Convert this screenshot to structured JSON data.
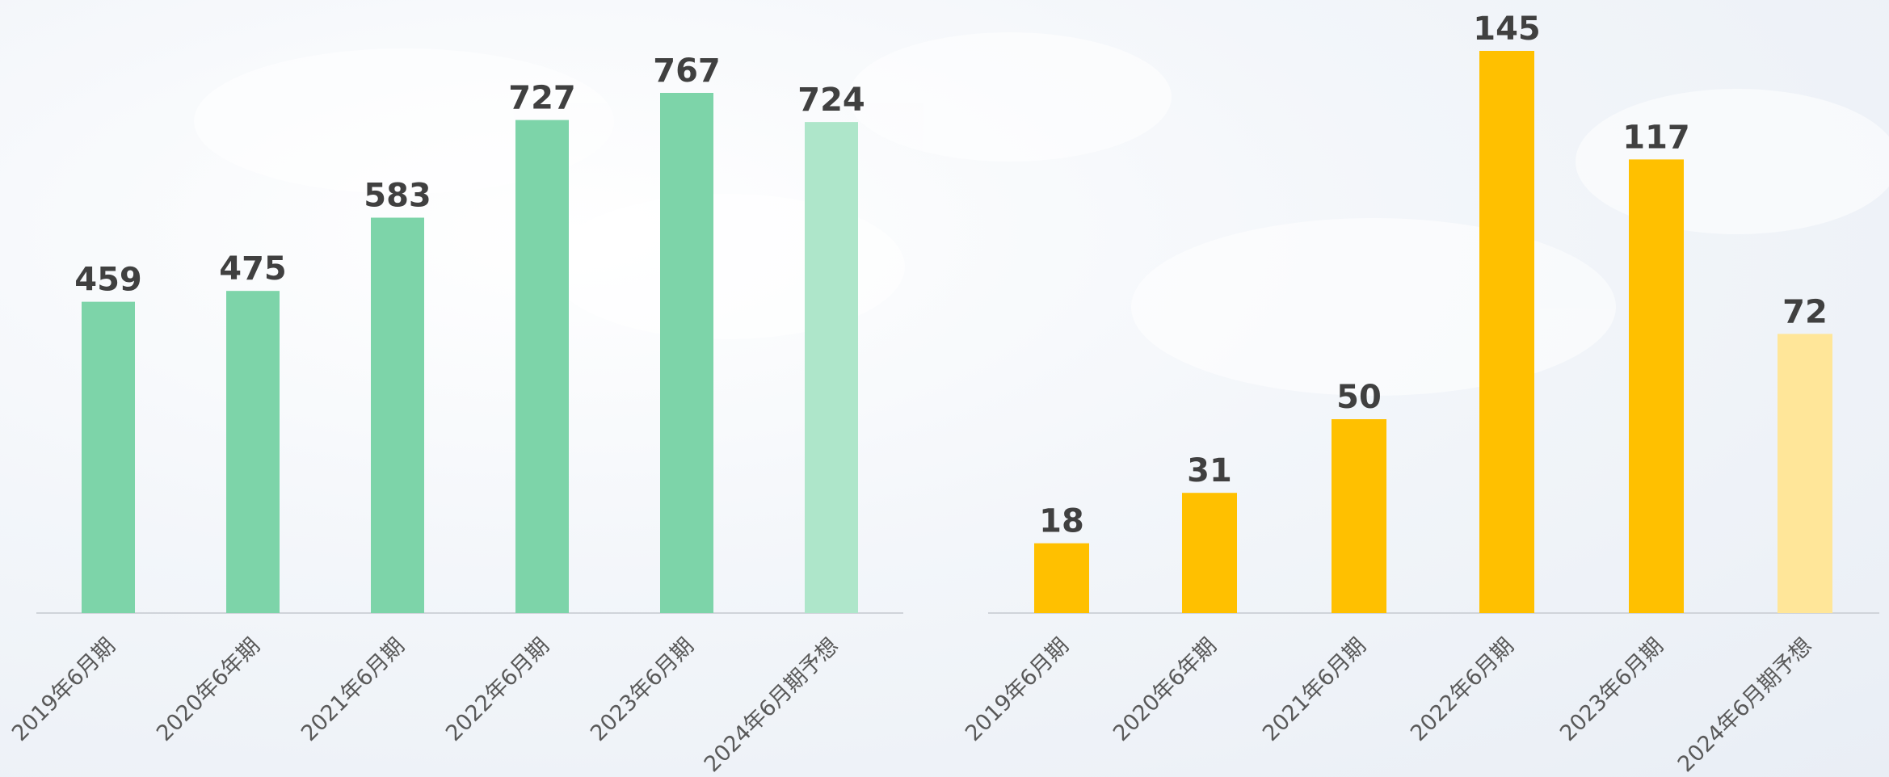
{
  "chart_data": [
    {
      "type": "bar",
      "categories": [
        "2019年6月期",
        "2020年6年期",
        "2021年6月期",
        "2022年6月期",
        "2023年6月期",
        "2024年6月期予想"
      ],
      "values": [
        459,
        475,
        583,
        727,
        767,
        724
      ],
      "colors": [
        "#7dd4a9",
        "#7dd4a9",
        "#7dd4a9",
        "#7dd4a9",
        "#7dd4a9",
        "#aee6ca"
      ]
    },
    {
      "type": "bar",
      "categories": [
        "2019年6月期",
        "2020年6年期",
        "2021年6月期",
        "2022年6月期",
        "2023年6月期",
        "2024年6月期予想"
      ],
      "values": [
        18,
        31,
        50,
        145,
        117,
        72
      ],
      "colors": [
        "#ffc000",
        "#ffc000",
        "#ffc000",
        "#ffc000",
        "#ffc000",
        "#ffe699"
      ]
    }
  ]
}
